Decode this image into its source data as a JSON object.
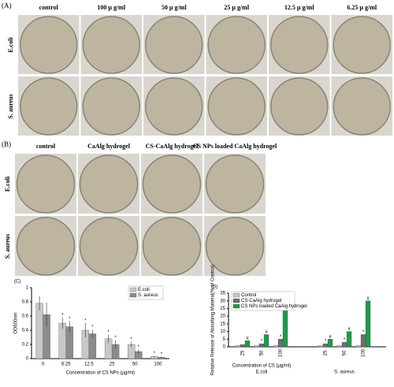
{
  "panel_a": {
    "label": "(A)",
    "columns": [
      "control",
      "100 μ g/ml",
      "50 μ g/ml",
      "25 μ g/ml",
      "12.5 μ g/ml",
      "6.25 μ g/ml"
    ],
    "rows": [
      "E.coli",
      "S. aureus"
    ]
  },
  "panel_b": {
    "label": "(B)",
    "columns": [
      "control",
      "CaAlg hydrogel",
      "CS-CaAlg hydrogel",
      "CS NPs loaded CaAlg hydrogel"
    ],
    "rows": [
      "E.coli",
      "S. aureus"
    ]
  },
  "chart_data": [
    {
      "type": "bar",
      "label": "(C)",
      "y_label": "OD600nm",
      "x_label": "Concentration of CS NPs (μg/ml)",
      "categories": [
        "0",
        "6.25",
        "12.5",
        "25",
        "50",
        "100"
      ],
      "series": [
        {
          "name": "E.coli",
          "color": "#c8c8c8",
          "values": [
            0.78,
            0.5,
            0.4,
            0.28,
            0.2,
            0.03
          ],
          "errors": [
            0.1,
            0.08,
            0.1,
            0.06,
            0.04,
            0.01
          ],
          "marks": [
            null,
            "*",
            "*",
            "*",
            "*",
            "*"
          ]
        },
        {
          "name": "S. aureus",
          "color": "#8c8c8c",
          "values": [
            0.62,
            0.45,
            0.35,
            0.2,
            0.1,
            0.02
          ],
          "errors": [
            0.17,
            0.08,
            0.06,
            0.06,
            0.03,
            0.01
          ],
          "marks": [
            null,
            "*",
            "*",
            "*",
            "*",
            "*"
          ]
        }
      ],
      "ylim": [
        0,
        1
      ],
      "yticks": [
        0,
        0.2,
        0.4,
        0.6,
        0.8,
        1
      ],
      "legend": "upper right"
    },
    {
      "type": "bar",
      "label": "(D)",
      "y_label": "Relative Release of Absorbing Material(% of Control)",
      "x_label": "Concentration of CS (μg/ml)",
      "categories": [
        "25",
        "50",
        "100",
        "25",
        "50",
        "100"
      ],
      "groups": [
        "E.coli",
        "S. aureus"
      ],
      "series": [
        {
          "name": "Control",
          "color": "#c8c8c8",
          "values": [
            1,
            1,
            1,
            1,
            1,
            1
          ],
          "marks": [
            null,
            null,
            null,
            null,
            null,
            null
          ]
        },
        {
          "name": "CS-CaAlg hydrogel",
          "color": "#6e6e6e",
          "values": [
            1.5,
            2,
            5,
            2,
            3,
            8
          ],
          "marks": [
            null,
            "*",
            "*",
            "*",
            "*",
            "*"
          ]
        },
        {
          "name": "CS NPs loaded CaAlg hydrogel",
          "color": "#1f9a4a",
          "values": [
            4,
            8,
            25,
            5,
            10,
            30
          ],
          "marks": [
            "#",
            "#",
            "#",
            "#",
            "#",
            "#"
          ]
        }
      ],
      "ylim": [
        0,
        35
      ],
      "yticks": [
        0,
        5,
        10,
        15,
        20,
        25,
        30,
        35
      ],
      "legend": "upper left"
    }
  ]
}
